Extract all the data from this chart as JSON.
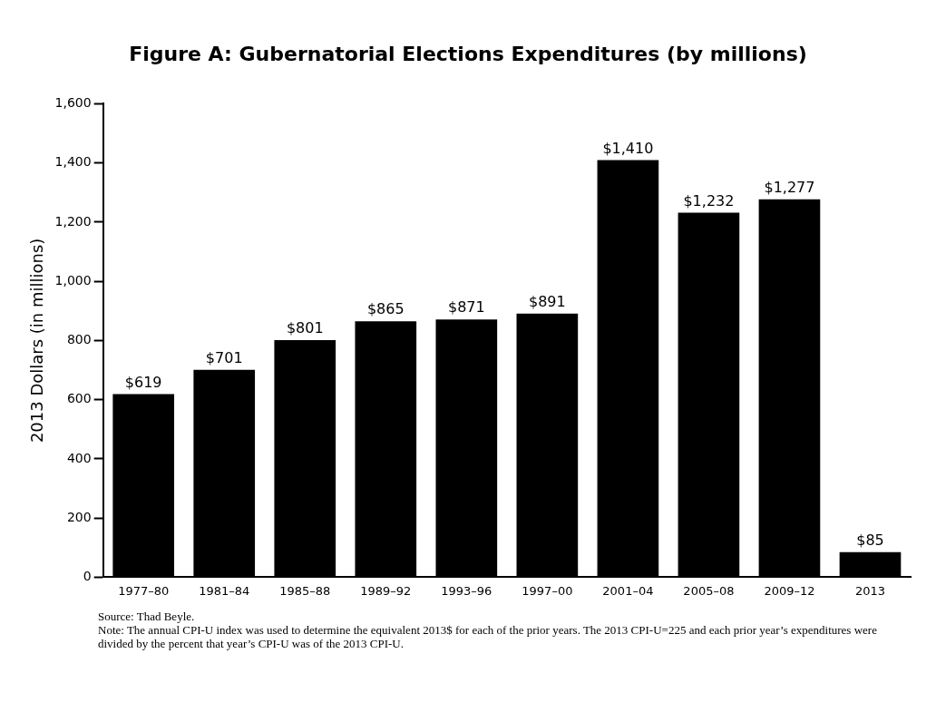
{
  "chart_data": {
    "type": "bar",
    "title": "Figure A: Gubernatorial Elections Expenditures (by millions)",
    "ylabel": "2013 Dollars (in millions)",
    "categories": [
      "1977–80",
      "1981–84",
      "1985–88",
      "1989–92",
      "1993–96",
      "1997–00",
      "2001–04",
      "2005–08",
      "2009–12",
      "2013"
    ],
    "values": [
      619,
      701,
      801,
      865,
      871,
      891,
      1410,
      1232,
      1277,
      85
    ],
    "value_labels": [
      "$619",
      "$701",
      "$801",
      "$865",
      "$871",
      "$891",
      "$1,410",
      "$1,232",
      "$1,277",
      "$85"
    ],
    "color": "#000000",
    "ylim": [
      0,
      1600
    ],
    "yticks": [
      0,
      {
        "value": 200,
        "label": "200"
      },
      {
        "value": 400,
        "label": "400"
      },
      {
        "value": 600,
        "label": "600"
      },
      {
        "value": 800,
        "label": "800"
      },
      {
        "value": 1000,
        "label": "1,000"
      },
      {
        "value": 1200,
        "label": "1,200"
      },
      {
        "value": 1400,
        "label": "1,400"
      },
      {
        "value": 1600,
        "label": "1,600"
      }
    ],
    "grid": false,
    "legend": false,
    "annotations": [
      "Source: Thad Beyle.",
      "Note: The annual CPI-U index was used to determine the equivalent 2013$ for each of the prior years. The 2013 CPI-U=225 and each prior year’s expenditures were divided by the percent that year’s CPI-U was of the 2013 CPI-U."
    ]
  }
}
